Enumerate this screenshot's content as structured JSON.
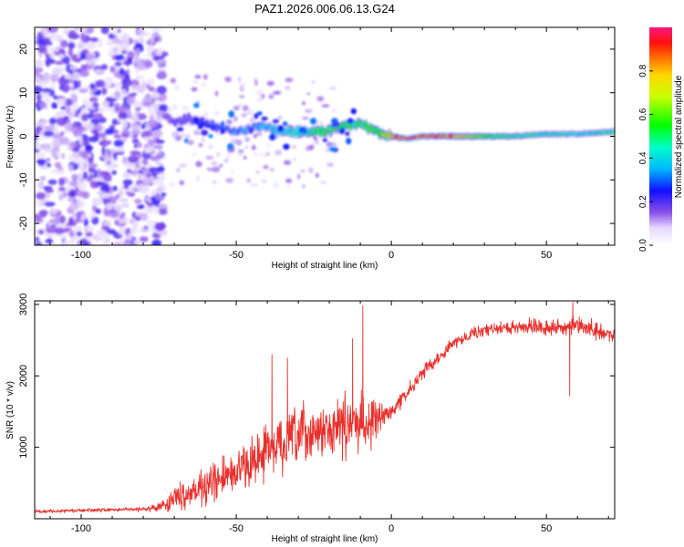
{
  "title": "PAZ1.2026.006.06.13.G24",
  "chart_data": [
    {
      "type": "heatmap",
      "xlabel": "Height of straight line (km)",
      "ylabel": "Frequency (Hz)",
      "xlim": [
        -115,
        72
      ],
      "ylim": [
        -25,
        25
      ],
      "xticks": [
        -100,
        -50,
        0,
        50
      ],
      "yticks": [
        20,
        10,
        0,
        -10,
        -20
      ],
      "colorbar": {
        "label": "Normalized spectral amplitude",
        "range": [
          0,
          1
        ],
        "ticks": [
          "0.0",
          "0.2",
          "0.4",
          "0.6",
          "0.8"
        ],
        "tick_values": [
          0,
          0.2,
          0.4,
          0.6,
          0.8
        ]
      },
      "ridge": {
        "description": "dominant frequency track",
        "x": [
          -73,
          -70,
          -65,
          -60,
          -55,
          -50,
          -45,
          -40,
          -35,
          -30,
          -25,
          -20,
          -15,
          -10,
          -5,
          0,
          5,
          10,
          20,
          30,
          40,
          50,
          60,
          70
        ],
        "y": [
          5,
          3,
          4,
          3,
          2,
          1,
          2,
          2,
          1,
          1,
          1,
          1.5,
          2.5,
          3,
          1,
          0,
          -0.5,
          0,
          0,
          0,
          0,
          0.5,
          0.5,
          1
        ],
        "amplitude": [
          0.15,
          0.2,
          0.2,
          0.25,
          0.25,
          0.3,
          0.3,
          0.35,
          0.4,
          0.45,
          0.5,
          0.55,
          0.55,
          0.5,
          0.55,
          0.75,
          1.0,
          0.95,
          0.8,
          0.55,
          0.45,
          0.45,
          0.4,
          0.45
        ]
      }
    },
    {
      "type": "line",
      "xlabel": "Height of straight line (km)",
      "ylabel": "SNR (10 * v/v)",
      "xlim": [
        -115,
        72
      ],
      "ylim": [
        0,
        3050
      ],
      "xticks": [
        -100,
        -50,
        0,
        50
      ],
      "yticks": [
        1000,
        2000,
        3000
      ],
      "series": [
        {
          "name": "SNR",
          "color": "#e8302c",
          "x": [
            -115,
            -105,
            -95,
            -85,
            -78,
            -74,
            -70,
            -65,
            -60,
            -55,
            -50,
            -45,
            -40,
            -35,
            -30,
            -25,
            -20,
            -15,
            -10,
            -5,
            0,
            5,
            10,
            15,
            20,
            25,
            30,
            35,
            40,
            45,
            50,
            55,
            60,
            65,
            72
          ],
          "y": [
            100,
            110,
            120,
            130,
            140,
            180,
            280,
            380,
            450,
            550,
            650,
            800,
            950,
            1050,
            1150,
            1200,
            1250,
            1300,
            1350,
            1380,
            1500,
            1750,
            2050,
            2250,
            2450,
            2580,
            2640,
            2660,
            2680,
            2700,
            2680,
            2670,
            2690,
            2640,
            2560
          ],
          "noise": [
            30,
            30,
            30,
            30,
            40,
            90,
            200,
            260,
            300,
            330,
            380,
            420,
            460,
            500,
            480,
            430,
            430,
            480,
            500,
            320,
            150,
            110,
            110,
            110,
            110,
            100,
            100,
            110,
            110,
            120,
            130,
            140,
            160,
            160,
            120
          ],
          "spikes": [
            {
              "x": -38.5,
              "y": 2300
            },
            {
              "x": -33.5,
              "y": 2250
            },
            {
              "x": -12.5,
              "y": 2520
            },
            {
              "x": -9.2,
              "y": 2980
            },
            {
              "x": 57.5,
              "y": 1720
            },
            {
              "x": 58.5,
              "y": 3030
            }
          ]
        }
      ]
    }
  ]
}
